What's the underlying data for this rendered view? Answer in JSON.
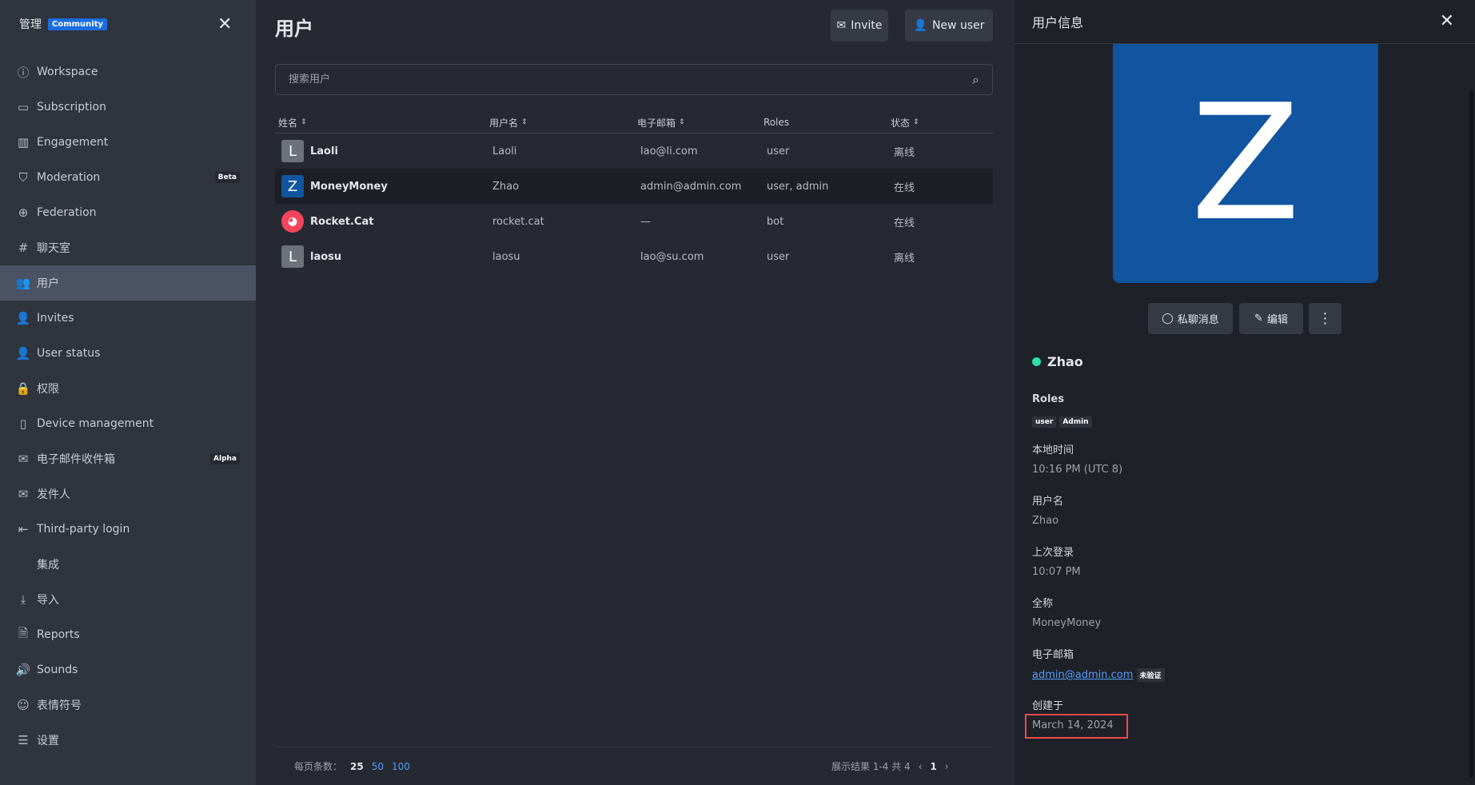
{
  "sidebar": {
    "title": "管理",
    "edition_badge": "Community",
    "items": [
      {
        "label": "Workspace",
        "icon": "info-icon"
      },
      {
        "label": "Subscription",
        "icon": "card-icon"
      },
      {
        "label": "Engagement",
        "icon": "chart-icon"
      },
      {
        "label": "Moderation",
        "icon": "shield-icon",
        "tag": "Beta"
      },
      {
        "label": "Federation",
        "icon": "globe-icon"
      },
      {
        "label": "聊天室",
        "icon": "hash-icon"
      },
      {
        "label": "用户",
        "icon": "team-icon",
        "active": true
      },
      {
        "label": "Invites",
        "icon": "user-plus-icon"
      },
      {
        "label": "User status",
        "icon": "user-icon"
      },
      {
        "label": "权限",
        "icon": "user-lock-icon"
      },
      {
        "label": "Device management",
        "icon": "mobile-icon"
      },
      {
        "label": "电子邮件收件箱",
        "icon": "mail-icon",
        "tag": "Alpha"
      },
      {
        "label": "发件人",
        "icon": "mail-icon"
      },
      {
        "label": "Third-party login",
        "icon": "login-icon"
      },
      {
        "label": "集成",
        "icon": "code-icon"
      },
      {
        "label": "导入",
        "icon": "download-icon"
      },
      {
        "label": "Reports",
        "icon": "file-icon"
      },
      {
        "label": "Sounds",
        "icon": "sound-icon"
      },
      {
        "label": "表情符号",
        "icon": "emoji-icon"
      },
      {
        "label": "设置",
        "icon": "sliders-icon"
      }
    ]
  },
  "main": {
    "title": "用户",
    "invite_label": "Invite",
    "new_user_label": "New user",
    "search_placeholder": "搜索用户",
    "columns": [
      "姓名",
      "用户名",
      "电子邮箱",
      "Roles",
      "状态"
    ],
    "rows": [
      {
        "initial": "L",
        "name": "Laoli",
        "username": "Laoli",
        "email": "lao@li.com",
        "roles": "user",
        "status": "离线",
        "avatar_color": "#6c727a"
      },
      {
        "initial": "Z",
        "name": "MoneyMoney",
        "username": "Zhao",
        "email": "admin@admin.com",
        "roles": "user, admin",
        "status": "在线",
        "avatar_color": "#1154a0"
      },
      {
        "initial": "",
        "name": "Rocket.Cat",
        "username": "rocket.cat",
        "email": "—",
        "roles": "bot",
        "status": "在线",
        "avatar_color": "#f5455c"
      },
      {
        "initial": "L",
        "name": "laosu",
        "username": "laosu",
        "email": "lao@su.com",
        "roles": "user",
        "status": "离线",
        "avatar_color": "#6c727a"
      }
    ],
    "footer": {
      "per_page_label": "每页条数：",
      "per_page_options": [
        "25",
        "50",
        "100"
      ],
      "results_text": "展示结果 1-4 共 4",
      "current_page": "1"
    }
  },
  "panel": {
    "title": "用户信息",
    "avatar_initial": "Z",
    "avatar_color": "#1154a0",
    "dm_label": "私聊消息",
    "edit_label": "编辑",
    "username": "Zhao",
    "status_color": "#2de0a5",
    "roles_label": "Roles",
    "roles": [
      "user",
      "Admin"
    ],
    "local_time_label": "本地时间",
    "local_time": "10:16 PM (UTC 8)",
    "username_label": "用户名",
    "username_value": "Zhao",
    "last_login_label": "上次登录",
    "last_login": "10:07 PM",
    "fullname_label": "全称",
    "fullname": "MoneyMoney",
    "email_label": "电子邮箱",
    "email": "admin@admin.com",
    "email_unverified": "未验证",
    "created_label": "创建于",
    "created": "March 14, 2024"
  }
}
